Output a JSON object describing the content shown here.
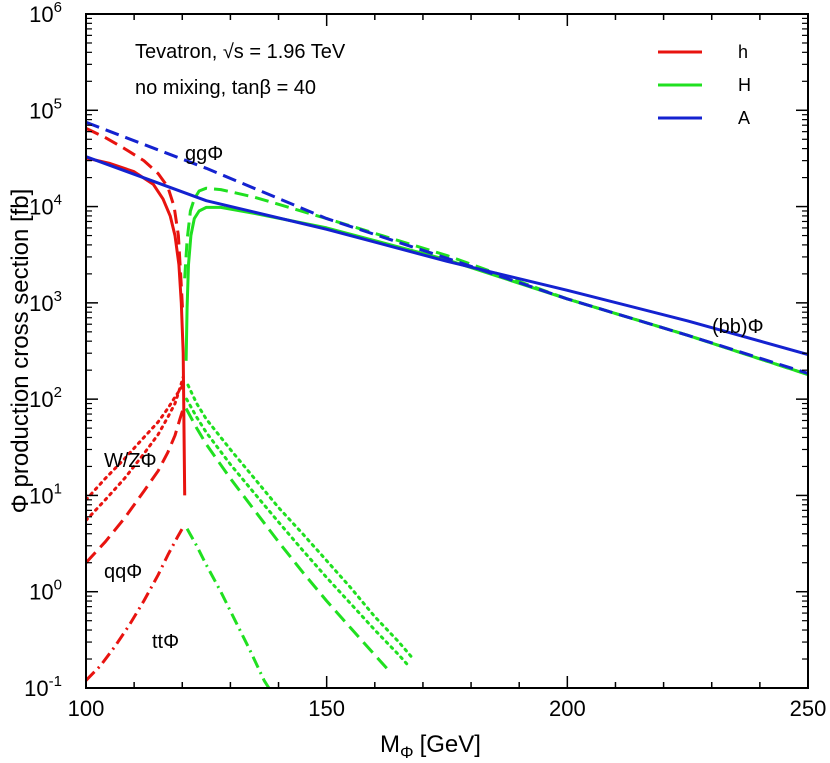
{
  "chart_data": {
    "type": "line",
    "xlabel_main": "M",
    "xlabel_sub": "Φ",
    "xlabel_unit": "[GeV]",
    "ylabel": "Φ production cross section [fb]",
    "xlim": [
      100,
      250
    ],
    "ylim": [
      0.1,
      1000000
    ],
    "yscale": "log",
    "x_ticks": [
      100,
      150,
      200,
      250
    ],
    "y_ticks": [
      {
        "value": 0.1,
        "base": "10",
        "exp": "-1"
      },
      {
        "value": 1,
        "base": "10",
        "exp": "0"
      },
      {
        "value": 10,
        "base": "10",
        "exp": "1"
      },
      {
        "value": 100,
        "base": "10",
        "exp": "2"
      },
      {
        "value": 1000,
        "base": "10",
        "exp": "3"
      },
      {
        "value": 10000,
        "base": "10",
        "exp": "4"
      },
      {
        "value": 100000,
        "base": "10",
        "exp": "5"
      },
      {
        "value": 1000000,
        "base": "10",
        "exp": "6"
      }
    ],
    "grid": false,
    "info_lines": [
      "Tevatron, √s = 1.96 TeV",
      "no mixing, tanβ = 40"
    ],
    "legend_position": "top-right",
    "legend": [
      {
        "label": "h",
        "color": "#e8130f"
      },
      {
        "label": "H",
        "color": "#20e020"
      },
      {
        "label": "A",
        "color": "#1422d0"
      }
    ],
    "annotations": [
      "ggΦ",
      "(bb)Φ",
      "W/ZΦ",
      "qqΦ",
      "ttΦ"
    ],
    "series": [
      {
        "higgs": "h",
        "process": "bbΦ",
        "color": "#e8130f",
        "dash": "solid",
        "points": [
          [
            100,
            32000
          ],
          [
            105,
            28000
          ],
          [
            110,
            23000
          ],
          [
            114,
            17000
          ],
          [
            116,
            12000
          ],
          [
            117.5,
            8000
          ],
          [
            118.5,
            5000
          ],
          [
            119.3,
            2500
          ],
          [
            119.8,
            1000
          ],
          [
            120.2,
            300
          ],
          [
            120.5,
            10
          ]
        ]
      },
      {
        "higgs": "h",
        "process": "ggΦ",
        "color": "#e8130f",
        "dash": "long",
        "points": [
          [
            100,
            65000
          ],
          [
            104,
            52000
          ],
          [
            108,
            40000
          ],
          [
            112,
            30000
          ],
          [
            115,
            22000
          ],
          [
            117,
            16000
          ],
          [
            118.3,
            10000
          ],
          [
            119.2,
            5000
          ],
          [
            119.8,
            1500
          ],
          [
            120.1,
            800
          ]
        ]
      },
      {
        "higgs": "h",
        "process": "W/ZΦ",
        "color": "#e8130f",
        "dash": "dot",
        "points": [
          [
            100,
            5.5
          ],
          [
            104,
            9
          ],
          [
            108,
            15
          ],
          [
            112,
            27
          ],
          [
            115,
            43
          ],
          [
            117,
            65
          ],
          [
            118.5,
            90
          ],
          [
            119.5,
            130
          ],
          [
            120.2,
            170
          ]
        ]
      },
      {
        "higgs": "h",
        "process": "W/ZΦ (2)",
        "color": "#e8130f",
        "dash": "dot",
        "points": [
          [
            100,
            9
          ],
          [
            104,
            15
          ],
          [
            108,
            24
          ],
          [
            112,
            40
          ],
          [
            115,
            58
          ],
          [
            117,
            80
          ],
          [
            118.5,
            105
          ],
          [
            119.5,
            125
          ],
          [
            120.2,
            140
          ]
        ]
      },
      {
        "higgs": "h",
        "process": "qqΦ",
        "color": "#e8130f",
        "dash": "long",
        "points": [
          [
            100,
            2.0
          ],
          [
            104,
            3.3
          ],
          [
            108,
            5.8
          ],
          [
            112,
            11
          ],
          [
            115,
            18
          ],
          [
            117,
            28
          ],
          [
            118.5,
            42
          ],
          [
            119.5,
            62
          ],
          [
            120.2,
            80
          ]
        ]
      },
      {
        "higgs": "h",
        "process": "ttΦ",
        "color": "#e8130f",
        "dash": "dashdot",
        "points": [
          [
            100,
            0.12
          ],
          [
            103,
            0.17
          ],
          [
            106,
            0.27
          ],
          [
            109,
            0.45
          ],
          [
            112,
            0.8
          ],
          [
            115,
            1.5
          ],
          [
            117,
            2.4
          ],
          [
            119,
            3.7
          ],
          [
            120.3,
            4.8
          ]
        ]
      },
      {
        "higgs": "H",
        "process": "bbΦ",
        "color": "#20e020",
        "dash": "solid",
        "points": [
          [
            120.8,
            250
          ],
          [
            121.0,
            900
          ],
          [
            121.3,
            2500
          ],
          [
            121.8,
            5000
          ],
          [
            122.5,
            7500
          ],
          [
            123.5,
            9000
          ],
          [
            125,
            9800
          ],
          [
            128,
            9800
          ],
          [
            135,
            8500
          ],
          [
            150,
            6000
          ],
          [
            175,
            2800
          ],
          [
            200,
            1100
          ],
          [
            225,
            460
          ],
          [
            250,
            180
          ]
        ]
      },
      {
        "higgs": "H",
        "process": "ggΦ",
        "color": "#20e020",
        "dash": "long",
        "points": [
          [
            120.5,
            1800
          ],
          [
            121.0,
            4500
          ],
          [
            121.7,
            9000
          ],
          [
            122.5,
            12000
          ],
          [
            123.5,
            14500
          ],
          [
            125,
            15500
          ],
          [
            128,
            15000
          ],
          [
            135,
            12500
          ],
          [
            150,
            7500
          ],
          [
            175,
            3100
          ],
          [
            200,
            1100
          ],
          [
            225,
            460
          ],
          [
            250,
            180
          ]
        ]
      },
      {
        "higgs": "H",
        "process": "W/ZΦ",
        "color": "#20e020",
        "dash": "dot",
        "points": [
          [
            121.2,
            140
          ],
          [
            123,
            90
          ],
          [
            125,
            62
          ],
          [
            130,
            30
          ],
          [
            135,
            15
          ],
          [
            140,
            7.5
          ],
          [
            145,
            4
          ],
          [
            150,
            2.1
          ],
          [
            155,
            1.1
          ],
          [
            160,
            0.55
          ],
          [
            165,
            0.3
          ],
          [
            168,
            0.2
          ]
        ]
      },
      {
        "higgs": "H",
        "process": "W/ZΦ (2)",
        "color": "#20e020",
        "dash": "dot",
        "points": [
          [
            120.9,
            100
          ],
          [
            123,
            65
          ],
          [
            125,
            45
          ],
          [
            130,
            21
          ],
          [
            135,
            10.5
          ],
          [
            140,
            5.3
          ],
          [
            145,
            2.7
          ],
          [
            150,
            1.4
          ],
          [
            155,
            0.75
          ],
          [
            160,
            0.4
          ],
          [
            165,
            0.22
          ],
          [
            167,
            0.17
          ]
        ]
      },
      {
        "higgs": "H",
        "process": "qqΦ",
        "color": "#20e020",
        "dash": "long",
        "points": [
          [
            120.8,
            80
          ],
          [
            123,
            50
          ],
          [
            125,
            34
          ],
          [
            130,
            15
          ],
          [
            135,
            7
          ],
          [
            140,
            3.3
          ],
          [
            145,
            1.6
          ],
          [
            150,
            0.8
          ],
          [
            155,
            0.42
          ],
          [
            160,
            0.22
          ],
          [
            163,
            0.15
          ]
        ]
      },
      {
        "higgs": "H",
        "process": "ttΦ",
        "color": "#20e020",
        "dash": "dashdot",
        "points": [
          [
            121,
            4.5
          ],
          [
            123,
            3.0
          ],
          [
            125,
            1.9
          ],
          [
            128,
            1.0
          ],
          [
            131,
            0.5
          ],
          [
            134,
            0.25
          ],
          [
            137,
            0.12
          ],
          [
            138,
            0.1
          ]
        ]
      },
      {
        "higgs": "A",
        "process": "bbΦ",
        "color": "#1422d0",
        "dash": "solid",
        "points": [
          [
            100,
            33000
          ],
          [
            125,
            11500
          ],
          [
            150,
            5800
          ],
          [
            175,
            2700
          ],
          [
            200,
            1350
          ],
          [
            225,
            650
          ],
          [
            250,
            290
          ]
        ]
      },
      {
        "higgs": "A",
        "process": "ggΦ",
        "color": "#1422d0",
        "dash": "long",
        "points": [
          [
            100,
            75000
          ],
          [
            125,
            25000
          ],
          [
            150,
            7500
          ],
          [
            175,
            2900
          ],
          [
            200,
            1100
          ],
          [
            225,
            460
          ],
          [
            250,
            185
          ]
        ]
      }
    ]
  }
}
